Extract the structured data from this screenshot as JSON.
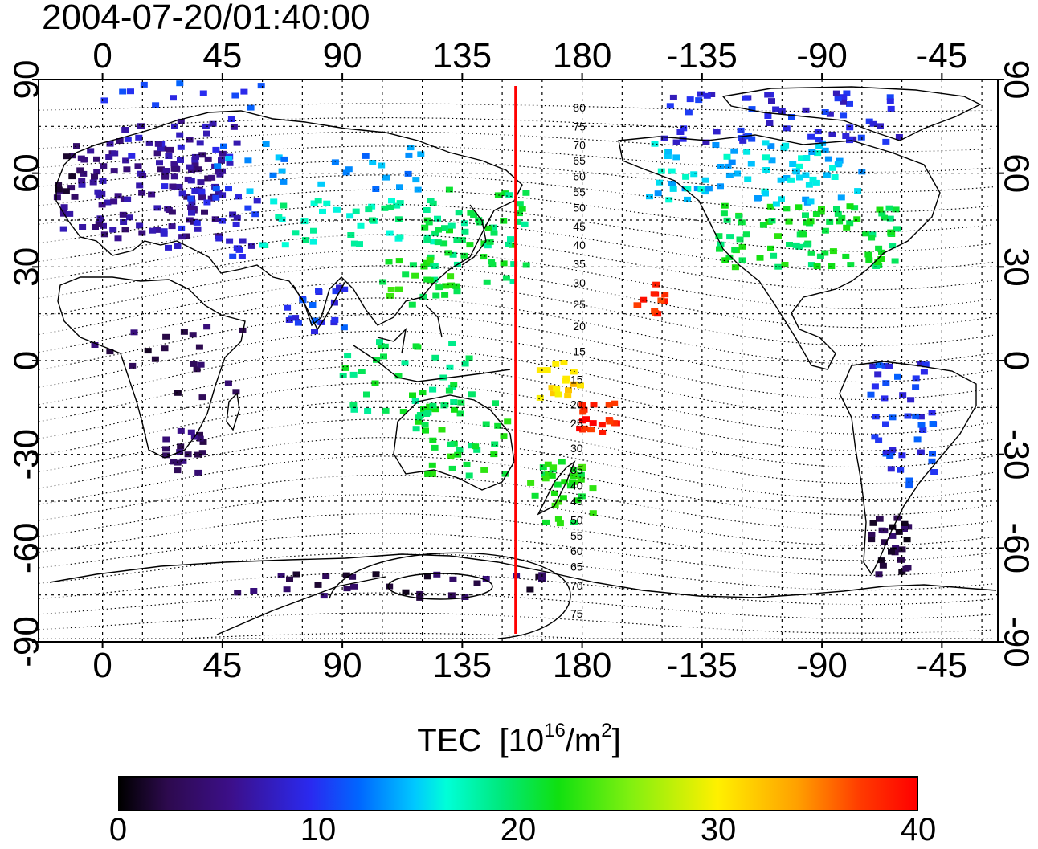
{
  "title": "2004-07-20/01:40:00",
  "axes": {
    "lon_ticks": [
      "0",
      "45",
      "90",
      "135",
      "180",
      "-135",
      "-90",
      "-45"
    ],
    "lat_ticks": [
      "90",
      "60",
      "30",
      "0",
      "-30",
      "-60",
      "-90"
    ],
    "lon_start": -24,
    "lat_range": [
      -90,
      90
    ],
    "grid": true
  },
  "colorbar": {
    "label": "TEC",
    "unit_base": "10",
    "unit_exp": "16",
    "unit_mid": "/m",
    "unit_exp2": "2",
    "min": 0,
    "max": 40,
    "ticks": [
      "0",
      "10",
      "20",
      "30",
      "40"
    ],
    "colors": [
      "#000000",
      "#3c0f8a",
      "#2a2af0",
      "#00c8ff",
      "#00e87a",
      "#80f010",
      "#fff000",
      "#ffa000",
      "#ff0000"
    ]
  },
  "meridian_line": {
    "lon": 155,
    "color": "#ff0000"
  },
  "contour_labels": [
    {
      "text": "80",
      "lon": 179,
      "lat": 81
    },
    {
      "text": "75",
      "lon": 179,
      "lat": 75
    },
    {
      "text": "70",
      "lon": 179,
      "lat": 69
    },
    {
      "text": "65",
      "lon": 179,
      "lat": 64
    },
    {
      "text": "60",
      "lon": 179,
      "lat": 59
    },
    {
      "text": "55",
      "lon": 179,
      "lat": 54
    },
    {
      "text": "50",
      "lon": 179,
      "lat": 49
    },
    {
      "text": "45",
      "lon": 179,
      "lat": 43
    },
    {
      "text": "40",
      "lon": 179,
      "lat": 37
    },
    {
      "text": "35",
      "lon": 179,
      "lat": 31
    },
    {
      "text": "30",
      "lon": 179,
      "lat": 25
    },
    {
      "text": "25",
      "lon": 179,
      "lat": 18
    },
    {
      "text": "20",
      "lon": 179,
      "lat": 11
    },
    {
      "text": "15",
      "lon": 179,
      "lat": 3
    },
    {
      "text": "15",
      "lon": 178,
      "lat": -6
    },
    {
      "text": "20",
      "lon": 178,
      "lat": -14
    },
    {
      "text": "25",
      "lon": 178,
      "lat": -20
    },
    {
      "text": "30",
      "lon": 178,
      "lat": -28
    },
    {
      "text": "35",
      "lon": 178,
      "lat": -35
    },
    {
      "text": "40",
      "lon": 178,
      "lat": -40
    },
    {
      "text": "45",
      "lon": 178,
      "lat": -45
    },
    {
      "text": "50",
      "lon": 178,
      "lat": -51
    },
    {
      "text": "55",
      "lon": 178,
      "lat": -56
    },
    {
      "text": "60",
      "lon": 178,
      "lat": -61
    },
    {
      "text": "65",
      "lon": 178,
      "lat": -66
    },
    {
      "text": "70",
      "lon": 178,
      "lat": -72
    },
    {
      "text": "75",
      "lon": 178,
      "lat": -81
    }
  ],
  "tec_clusters": [
    {
      "lon": 15,
      "lat": 55,
      "w": 30,
      "h": 16,
      "n": 110,
      "tec": 5.5
    },
    {
      "lon": -10,
      "lat": 60,
      "w": 8,
      "h": 8,
      "n": 14,
      "tec": 3
    },
    {
      "lon": 30,
      "lat": 70,
      "w": 22,
      "h": 8,
      "n": 30,
      "tec": 7.5
    },
    {
      "lon": 40,
      "lat": 45,
      "w": 18,
      "h": 12,
      "n": 35,
      "tec": 9
    },
    {
      "lon": 30,
      "lat": 85,
      "w": 30,
      "h": 4,
      "n": 12,
      "tec": 10
    },
    {
      "lon": 80,
      "lat": 62,
      "w": 45,
      "h": 8,
      "n": 28,
      "tec": 13
    },
    {
      "lon": 95,
      "lat": 45,
      "w": 35,
      "h": 8,
      "n": 40,
      "tec": 18
    },
    {
      "lon": 140,
      "lat": 40,
      "w": 20,
      "h": 15,
      "n": 60,
      "tec": 20
    },
    {
      "lon": 120,
      "lat": 25,
      "w": 15,
      "h": 8,
      "n": 25,
      "tec": 22
    },
    {
      "lon": 80,
      "lat": 15,
      "w": 12,
      "h": 10,
      "n": 20,
      "tec": 10
    },
    {
      "lon": 115,
      "lat": -5,
      "w": 25,
      "h": 12,
      "n": 40,
      "tec": 20
    },
    {
      "lon": 135,
      "lat": -25,
      "w": 18,
      "h": 12,
      "n": 40,
      "tec": 21
    },
    {
      "lon": 172,
      "lat": -42,
      "w": 12,
      "h": 10,
      "n": 35,
      "tec": 22
    },
    {
      "lon": 172,
      "lat": -6,
      "w": 8,
      "h": 6,
      "n": 16,
      "tec": 31
    },
    {
      "lon": 186,
      "lat": -18,
      "w": 8,
      "h": 5,
      "n": 20,
      "tec": 39
    },
    {
      "lon": 205,
      "lat": 20,
      "w": 6,
      "h": 5,
      "n": 12,
      "tec": 38
    },
    {
      "lon": 265,
      "lat": 40,
      "w": 35,
      "h": 10,
      "n": 90,
      "tec": 21
    },
    {
      "lon": 245,
      "lat": 60,
      "w": 40,
      "h": 10,
      "n": 80,
      "tec": 15
    },
    {
      "lon": 255,
      "lat": 78,
      "w": 45,
      "h": 8,
      "n": 60,
      "tec": 9
    },
    {
      "lon": 300,
      "lat": -20,
      "w": 12,
      "h": 20,
      "n": 45,
      "tec": 10
    },
    {
      "lon": 295,
      "lat": -60,
      "w": 8,
      "h": 10,
      "n": 30,
      "tec": 2.5
    },
    {
      "lon": 30,
      "lat": -30,
      "w": 8,
      "h": 8,
      "n": 20,
      "tec": 4
    },
    {
      "lon": 25,
      "lat": 0,
      "w": 30,
      "h": 12,
      "n": 20,
      "tec": 3
    },
    {
      "lon": 110,
      "lat": -72,
      "w": 60,
      "h": 4,
      "n": 30,
      "tec": 3
    }
  ]
}
